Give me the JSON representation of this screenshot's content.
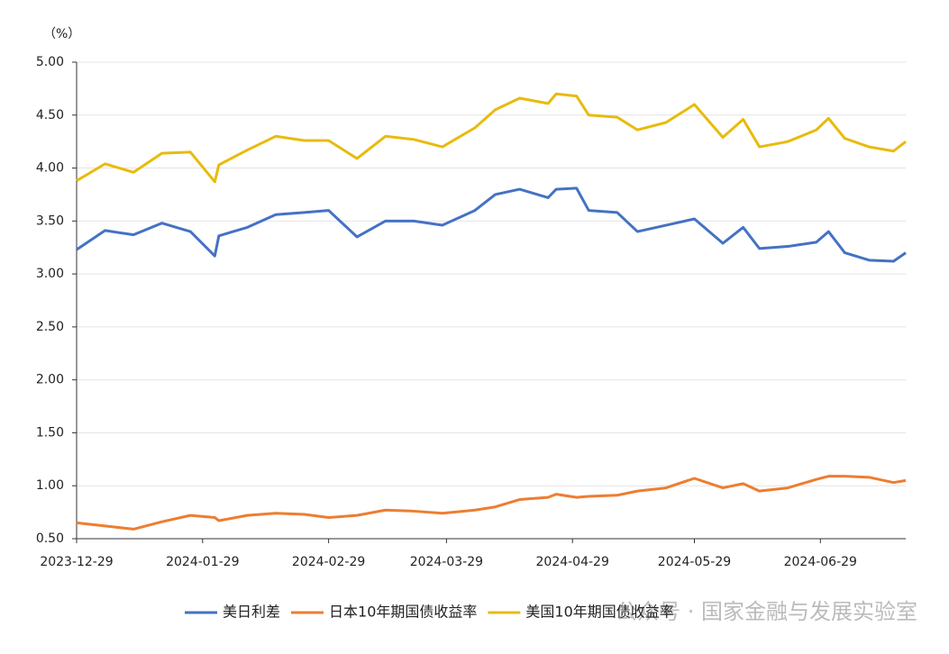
{
  "chart_data": {
    "type": "line",
    "unit_label": "（%）",
    "x": [
      "2023-12-29",
      "2024-01-05",
      "2024-01-12",
      "2024-01-19",
      "2024-01-26",
      "2024-02-01",
      "2024-02-02",
      "2024-02-09",
      "2024-02-16",
      "2024-02-23",
      "2024-02-29",
      "2024-03-07",
      "2024-03-14",
      "2024-03-21",
      "2024-03-28",
      "2024-04-05",
      "2024-04-10",
      "2024-04-16",
      "2024-04-23",
      "2024-04-25",
      "2024-04-30",
      "2024-05-03",
      "2024-05-10",
      "2024-05-15",
      "2024-05-22",
      "2024-05-29",
      "2024-06-05",
      "2024-06-10",
      "2024-06-14",
      "2024-06-21",
      "2024-06-28",
      "2024-07-01",
      "2024-07-05",
      "2024-07-11",
      "2024-07-17",
      "2024-07-20"
    ],
    "series": [
      {
        "name": "美日利差",
        "color": "#4472c4",
        "values": [
          3.23,
          3.41,
          3.37,
          3.48,
          3.4,
          3.17,
          3.36,
          3.44,
          3.56,
          3.58,
          3.6,
          3.35,
          3.5,
          3.5,
          3.46,
          3.6,
          3.75,
          3.8,
          3.72,
          3.8,
          3.81,
          3.6,
          3.58,
          3.4,
          3.46,
          3.52,
          3.29,
          3.44,
          3.24,
          3.26,
          3.3,
          3.4,
          3.2,
          3.13,
          3.12,
          3.2
        ]
      },
      {
        "name": "日本10年期国债收益率",
        "color": "#ed7d31",
        "values": [
          0.65,
          0.62,
          0.59,
          0.66,
          0.72,
          0.7,
          0.67,
          0.72,
          0.74,
          0.73,
          0.7,
          0.72,
          0.77,
          0.76,
          0.74,
          0.77,
          0.8,
          0.87,
          0.89,
          0.92,
          0.89,
          0.9,
          0.91,
          0.95,
          0.98,
          1.07,
          0.98,
          1.02,
          0.95,
          0.98,
          1.06,
          1.09,
          1.09,
          1.08,
          1.03,
          1.05
        ]
      },
      {
        "name": "美国10年期国债收益率",
        "color": "#e8bb0c",
        "values": [
          3.88,
          4.04,
          3.96,
          4.14,
          4.15,
          3.87,
          4.03,
          4.17,
          4.3,
          4.26,
          4.26,
          4.09,
          4.3,
          4.27,
          4.2,
          4.38,
          4.55,
          4.66,
          4.61,
          4.7,
          4.68,
          4.5,
          4.48,
          4.36,
          4.43,
          4.6,
          4.29,
          4.46,
          4.2,
          4.25,
          4.36,
          4.47,
          4.28,
          4.2,
          4.16,
          4.25
        ]
      }
    ],
    "xlim": [
      "2023-12-29",
      "2024-07-20"
    ],
    "xticks": [
      "2023-12-29",
      "2024-01-29",
      "2024-02-29",
      "2024-03-29",
      "2024-04-29",
      "2024-05-29",
      "2024-06-29"
    ],
    "ylim": [
      0.5,
      5.0
    ],
    "yticks": [
      {
        "value": 0.5,
        "label": "0.50"
      },
      {
        "value": 1.0,
        "label": "1.00"
      },
      {
        "value": 1.5,
        "label": "1.50"
      },
      {
        "value": 2.0,
        "label": "2.00"
      },
      {
        "value": 2.5,
        "label": "2.50"
      },
      {
        "value": 3.0,
        "label": "3.00"
      },
      {
        "value": 3.5,
        "label": "3.50"
      },
      {
        "value": 4.0,
        "label": "4.00"
      },
      {
        "value": 4.5,
        "label": "4.50"
      },
      {
        "value": 5.0,
        "label": "5.00"
      }
    ],
    "grid": true,
    "legend": "bottom",
    "watermark": "公众号 · 国家金融与发展实验室"
  }
}
